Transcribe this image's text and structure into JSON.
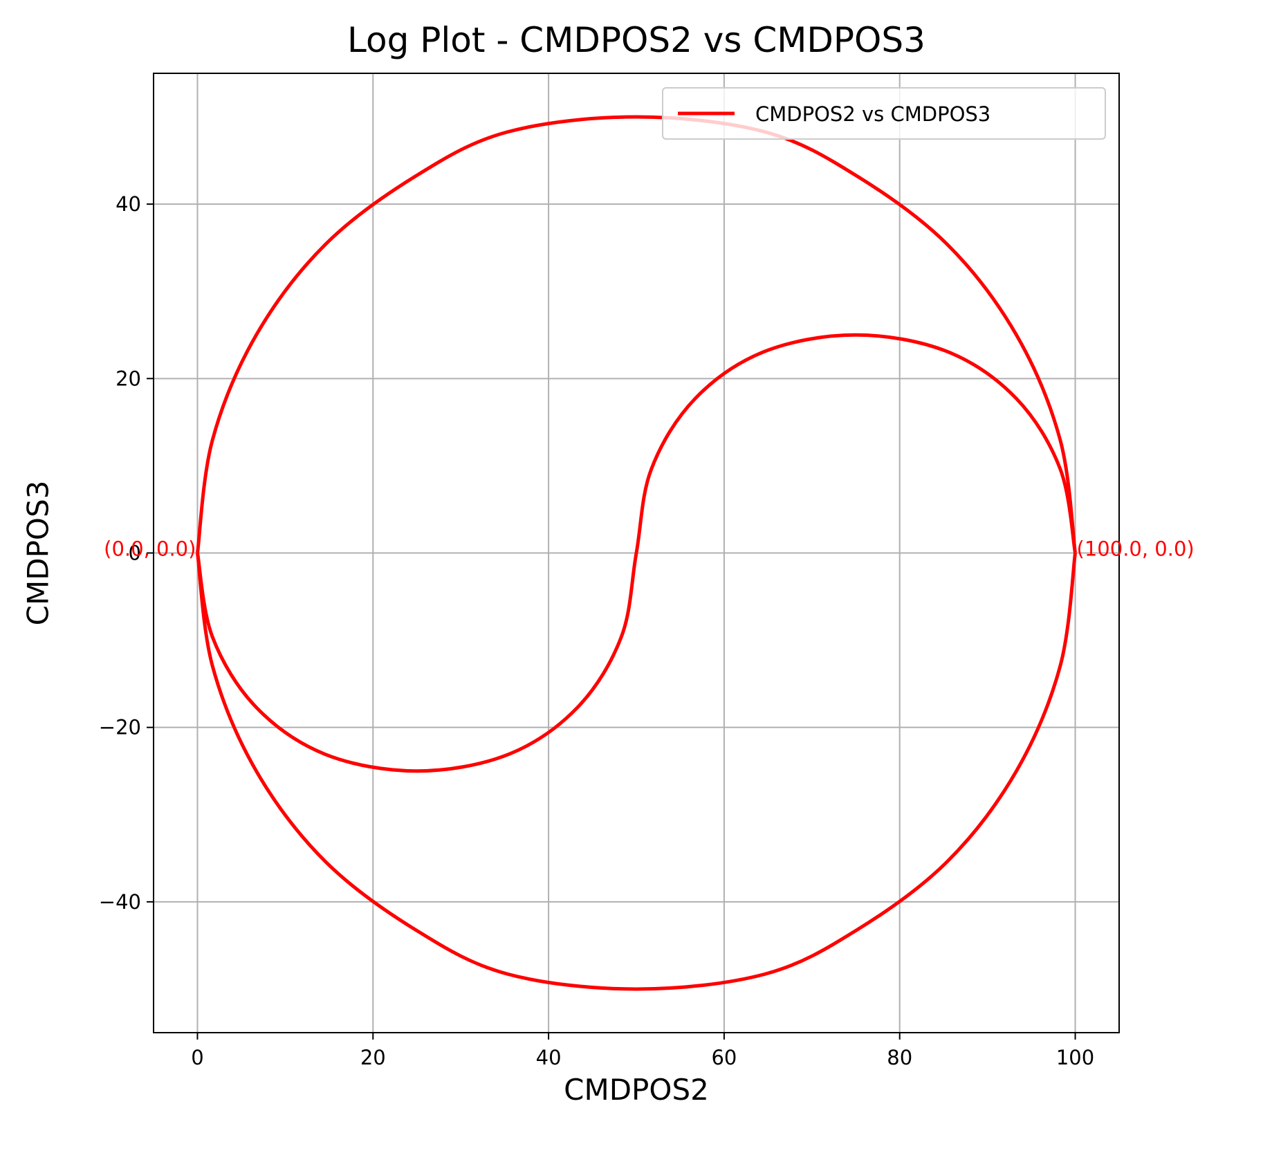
{
  "chart_data": {
    "type": "line",
    "title": "Log Plot - CMDPOS2 vs CMDPOS3",
    "xlabel": "CMDPOS2",
    "ylabel": "CMDPOS3",
    "xlim": [
      -5,
      105
    ],
    "ylim": [
      -55,
      55
    ],
    "xticks": [
      0,
      20,
      40,
      60,
      80,
      100
    ],
    "yticks": [
      -40,
      -20,
      0,
      20,
      40
    ],
    "xtick_labels": [
      "0",
      "20",
      "40",
      "60",
      "80",
      "100"
    ],
    "ytick_labels": [
      "−40",
      "−20",
      "0",
      "20",
      "40"
    ],
    "grid": true,
    "legend_position": "upper right",
    "line_color": "#ff0000",
    "series": [
      {
        "name": "CMDPOS2 vs CMDPOS3",
        "color": "#ff0000",
        "shape": "yin-yang curve: outer circle of radius 50 centred at (50, 0), plus two semicircles of radius 25 centred at (25, 0) below and (75, 0) above",
        "x": [
          0,
          1.7,
          6.7,
          14.6,
          25.0,
          35.4,
          43.3,
          48.3,
          50,
          51.7,
          56.7,
          64.6,
          75.0,
          85.4,
          93.3,
          98.3,
          100,
          98.3,
          93.3,
          85.4,
          75.0,
          64.6,
          50,
          35.4,
          25.0,
          14.6,
          6.7,
          1.7,
          0,
          1.7,
          6.7,
          14.6,
          25.0,
          35.4,
          50,
          64.6,
          75.0,
          85.4,
          93.3,
          98.3,
          100
        ],
        "y": [
          0,
          -9.6,
          -17.7,
          -23.1,
          -25.0,
          -23.1,
          -17.7,
          -9.6,
          0,
          9.6,
          17.7,
          23.1,
          25.0,
          23.1,
          17.7,
          9.6,
          0,
          12.9,
          25.0,
          35.4,
          43.3,
          48.3,
          50,
          48.3,
          43.3,
          35.4,
          25.0,
          12.9,
          0,
          -12.9,
          -25.0,
          -35.4,
          -43.3,
          -48.3,
          -50,
          -48.3,
          -43.3,
          -35.4,
          -25.0,
          -12.9,
          0
        ]
      }
    ],
    "annotations": [
      {
        "text": "(0.0, 0.0)",
        "x": 0,
        "y": 0,
        "color": "#ff0000",
        "anchor": "end"
      },
      {
        "text": "(100.0, 0.0)",
        "x": 100,
        "y": 0,
        "color": "#ff0000",
        "anchor": "start"
      }
    ]
  }
}
